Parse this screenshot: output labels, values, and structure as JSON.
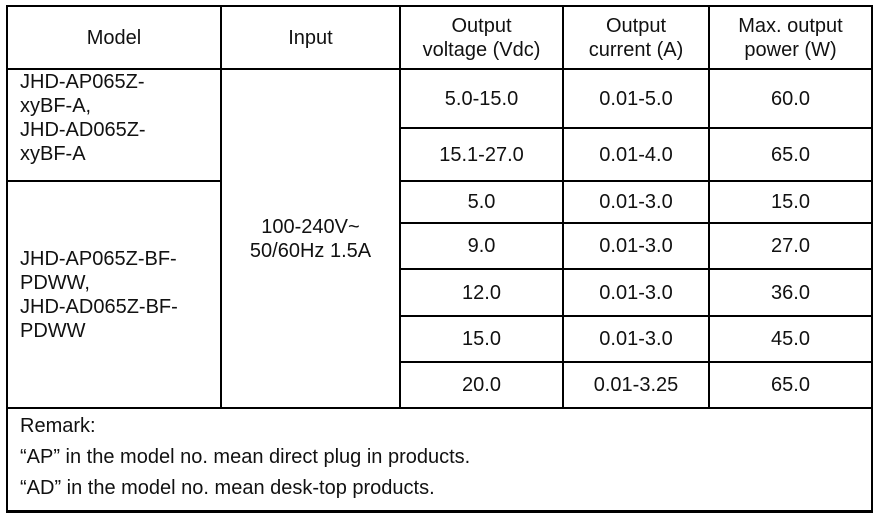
{
  "headers": {
    "model": "Model",
    "input": "Input",
    "voltage": [
      "Output",
      "voltage (Vdc)"
    ],
    "current": [
      "Output",
      "current (A)"
    ],
    "power": [
      "Max. output",
      "power (W)"
    ]
  },
  "input_value": [
    "100-240V~",
    "50/60Hz 1.5A"
  ],
  "groups": [
    {
      "model": [
        "JHD-AP065Z-",
        "xyBF-A,",
        "JHD-AD065Z-",
        "xyBF-A"
      ],
      "rows": [
        {
          "voltage": "5.0-15.0",
          "current": "0.01-5.0",
          "power": "60.0"
        },
        {
          "voltage": "15.1-27.0",
          "current": "0.01-4.0",
          "power": "65.0"
        }
      ]
    },
    {
      "model": [
        "JHD-AP065Z-BF-",
        "PDWW,",
        "JHD-AD065Z-BF-",
        "PDWW"
      ],
      "rows": [
        {
          "voltage": "5.0",
          "current": "0.01-3.0",
          "power": "15.0"
        },
        {
          "voltage": "9.0",
          "current": "0.01-3.0",
          "power": "27.0"
        },
        {
          "voltage": "12.0",
          "current": "0.01-3.0",
          "power": "36.0"
        },
        {
          "voltage": "15.0",
          "current": "0.01-3.0",
          "power": "45.0"
        },
        {
          "voltage": "20.0",
          "current": "0.01-3.25",
          "power": "65.0"
        }
      ]
    }
  ],
  "remark": [
    "Remark:",
    "“AP” in the model no. mean direct plug in products.",
    "“AD” in the model no. mean desk-top products."
  ]
}
